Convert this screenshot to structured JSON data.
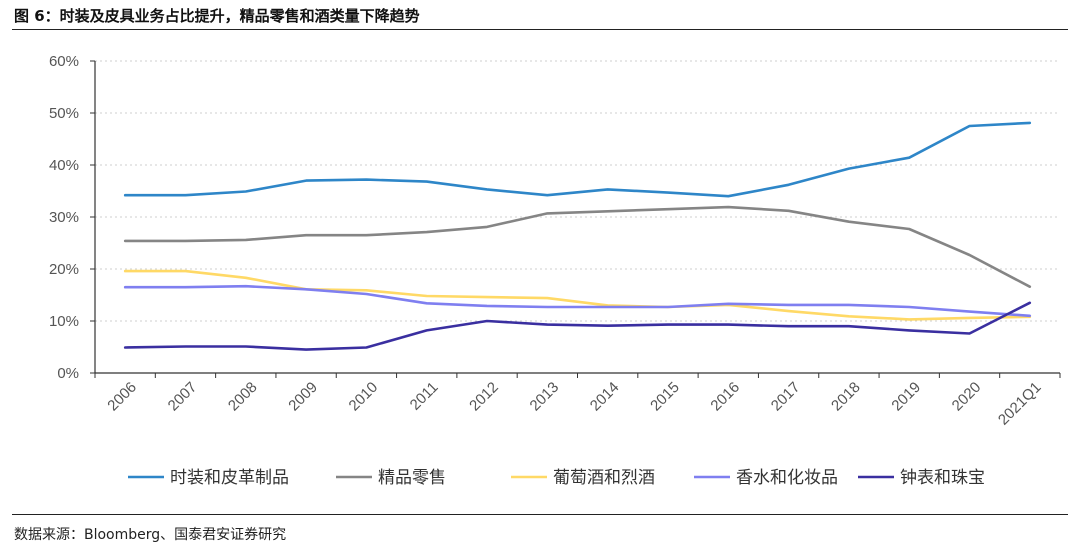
{
  "figure": {
    "title": "图 6：时装及皮具业务占比提升，精品零售和酒类量下降趋势",
    "source": "数据来源：Bloomberg、国泰君安证券研究"
  },
  "chart_data": {
    "type": "line",
    "x": [
      "2006",
      "2007",
      "2008",
      "2009",
      "2010",
      "2011",
      "2012",
      "2013",
      "2014",
      "2015",
      "2016",
      "2017",
      "2018",
      "2019",
      "2020",
      "2021Q1"
    ],
    "ylim": [
      0,
      60
    ],
    "yticks": [
      0,
      10,
      20,
      30,
      40,
      50,
      60
    ],
    "ytick_labels": [
      "0%",
      "10%",
      "20%",
      "30%",
      "40%",
      "50%",
      "60%"
    ],
    "y_unit": "%",
    "grid": "horizontal dotted",
    "legend_position": "bottom",
    "series": [
      {
        "name": "时装和皮革制品",
        "color": "#2E86C8",
        "values": [
          34.2,
          34.2,
          34.9,
          37.0,
          37.2,
          36.8,
          35.3,
          34.2,
          35.3,
          34.7,
          34.0,
          36.2,
          39.3,
          41.4,
          47.5,
          48.1
        ]
      },
      {
        "name": "精品零售",
        "color": "#858585",
        "values": [
          25.4,
          25.4,
          25.6,
          26.5,
          26.5,
          27.1,
          28.1,
          30.7,
          31.1,
          31.5,
          31.9,
          31.2,
          29.1,
          27.7,
          22.7,
          16.6
        ]
      },
      {
        "name": "葡萄酒和烈酒",
        "color": "#FFD966",
        "values": [
          19.6,
          19.6,
          18.3,
          16.1,
          15.9,
          14.8,
          14.6,
          14.4,
          13.0,
          12.7,
          13.1,
          11.9,
          10.9,
          10.3,
          10.6,
          10.8
        ]
      },
      {
        "name": "香水和化妆品",
        "color": "#7F7FF0",
        "values": [
          16.5,
          16.5,
          16.7,
          16.1,
          15.2,
          13.4,
          12.9,
          12.7,
          12.7,
          12.7,
          13.3,
          13.1,
          13.1,
          12.7,
          11.8,
          11.0
        ]
      },
      {
        "name": "钟表和珠宝",
        "color": "#3A2FA0",
        "values": [
          4.9,
          5.1,
          5.1,
          4.5,
          4.9,
          8.2,
          10.0,
          9.3,
          9.1,
          9.3,
          9.3,
          9.0,
          9.0,
          8.2,
          7.6,
          13.5
        ]
      }
    ]
  }
}
